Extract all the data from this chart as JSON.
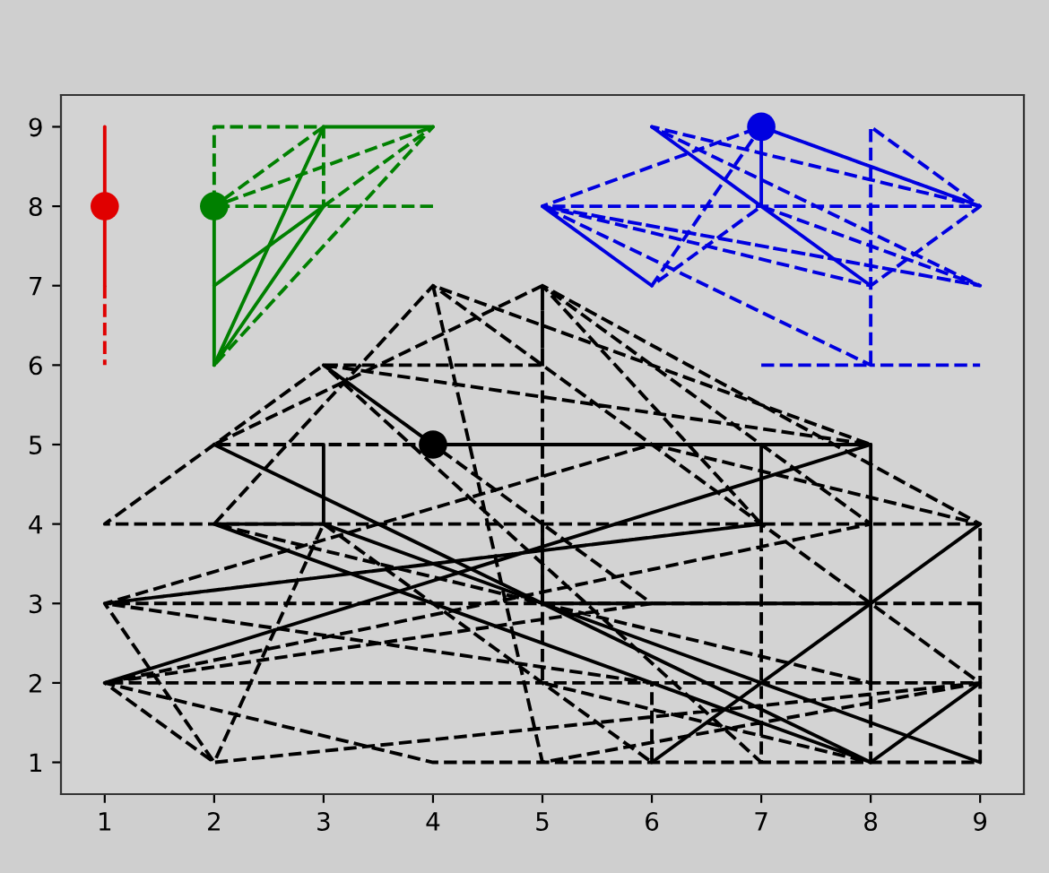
{
  "chart_data": {
    "type": "line",
    "xlim": [
      0.6,
      9.4
    ],
    "ylim": [
      0.6,
      9.4
    ],
    "xticks": [
      1,
      2,
      3,
      4,
      5,
      6,
      7,
      8,
      9
    ],
    "yticks": [
      1,
      2,
      3,
      4,
      5,
      6,
      7,
      8,
      9
    ],
    "series": [
      {
        "color": "#000000",
        "line_style": "dashed",
        "x": [
          9,
          1,
          2,
          1,
          4,
          9,
          9,
          1,
          3,
          5,
          5,
          2,
          4,
          3,
          8,
          4,
          5,
          9,
          1,
          8,
          5,
          7,
          1,
          6,
          6,
          3,
          2,
          9,
          4,
          2,
          8,
          8,
          5,
          5,
          9,
          6,
          1,
          7,
          7,
          3,
          6,
          1
        ],
        "values": [
          3,
          3,
          1,
          2,
          1,
          1,
          4,
          4,
          6,
          6,
          7,
          5,
          5,
          6,
          5,
          7,
          1,
          2,
          2,
          4,
          7,
          4,
          3,
          2,
          1,
          4,
          1,
          2,
          7,
          4,
          2,
          1,
          2,
          7,
          4,
          5,
          3,
          4,
          1,
          6,
          3,
          2
        ]
      },
      {
        "color": "#000000",
        "line_style": "solid",
        "x": [
          4,
          8,
          8
        ],
        "values": [
          5,
          5,
          2
        ]
      },
      {
        "color": "#000000",
        "line_style": "solid",
        "x": [
          1,
          8
        ],
        "values": [
          2,
          5
        ]
      },
      {
        "color": "#000000",
        "line_style": "solid",
        "x": [
          7,
          7
        ],
        "values": [
          5,
          4
        ]
      },
      {
        "color": "#000000",
        "line_style": "solid",
        "x": [
          3,
          3,
          2,
          8,
          2
        ],
        "values": [
          5,
          4,
          4,
          1,
          5
        ]
      },
      {
        "color": "#000000",
        "line_style": "solid",
        "x": [
          9,
          3
        ],
        "values": [
          1,
          4
        ]
      },
      {
        "color": "#000000",
        "line_style": "solid",
        "x": [
          9,
          8
        ],
        "values": [
          2,
          1
        ]
      },
      {
        "color": "#000000",
        "line_style": "solid",
        "x": [
          6,
          9
        ],
        "values": [
          1,
          4
        ]
      },
      {
        "color": "#000000",
        "line_style": "solid",
        "x": [
          5,
          5,
          8
        ],
        "values": [
          4,
          3,
          3
        ]
      },
      {
        "color": "#e00000",
        "line_style": "dashed",
        "x": [
          1,
          1
        ],
        "values": [
          7,
          6
        ]
      },
      {
        "color": "#e00000",
        "line_style": "solid",
        "x": [
          1,
          1
        ],
        "values": [
          9,
          7
        ]
      },
      {
        "color": "#008000",
        "line_style": "dashed",
        "x": [
          4,
          2,
          2,
          3,
          3,
          2,
          4,
          2
        ],
        "values": [
          8,
          8,
          9,
          9,
          8,
          7,
          9,
          6
        ]
      },
      {
        "color": "#008000",
        "line_style": "dashed",
        "x": [
          3,
          2,
          4
        ],
        "values": [
          9,
          8,
          9
        ]
      },
      {
        "color": "#008000",
        "line_style": "solid",
        "x": [
          4,
          3,
          2,
          3
        ],
        "values": [
          9,
          9,
          6,
          8
        ]
      },
      {
        "color": "#008000",
        "line_style": "solid",
        "x": [
          2,
          2
        ],
        "values": [
          8,
          6
        ]
      },
      {
        "color": "#0000e0",
        "line_style": "dashed",
        "x": [
          7,
          8,
          8,
          9,
          6,
          9,
          7,
          6,
          7,
          9,
          7,
          5,
          9,
          5,
          9,
          8,
          5,
          8,
          9
        ],
        "values": [
          6,
          6,
          9,
          8,
          9,
          7,
          8,
          7,
          9,
          8,
          9,
          8,
          7,
          8,
          8,
          7,
          8,
          6,
          6
        ]
      },
      {
        "color": "#0000e0",
        "line_style": "solid",
        "x": [
          6,
          7,
          7,
          7,
          8
        ],
        "values": [
          9,
          8,
          9,
          8,
          7
        ]
      },
      {
        "color": "#0000e0",
        "line_style": "solid",
        "x": [
          5,
          6
        ],
        "values": [
          8,
          7
        ]
      },
      {
        "type": "scatter",
        "marker": "circle",
        "x": [
          1,
          2,
          7,
          4
        ],
        "values": [
          8,
          8,
          9,
          5
        ],
        "colors": [
          "#e00000",
          "#008000",
          "#0000e0",
          "#000000"
        ]
      }
    ]
  }
}
